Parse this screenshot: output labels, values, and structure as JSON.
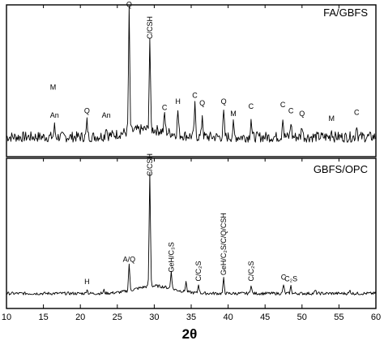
{
  "chart_data": {
    "type": "line",
    "xlabel": "2θ",
    "xlim": [
      10,
      60
    ],
    "xticks": [
      10,
      15,
      20,
      25,
      30,
      35,
      40,
      45,
      50,
      55,
      60
    ],
    "panels": [
      {
        "title": "FA/GBFS",
        "baseline": 0.13,
        "noise": 0.035,
        "humps": [
          {
            "x": 29,
            "w": 4,
            "h": 0.05
          }
        ],
        "peaks": [
          {
            "x": 16.5,
            "h": 0.07,
            "label": "An"
          },
          {
            "x": 16.3,
            "h": 0.0,
            "label": "M",
            "label_y": 0.44
          },
          {
            "x": 20.9,
            "h": 0.1,
            "label": "Q"
          },
          {
            "x": 23.5,
            "h": 0.07,
            "label": "An"
          },
          {
            "x": 26.6,
            "h": 0.8,
            "label": "Q"
          },
          {
            "x": 29.4,
            "h": 0.6,
            "label": "C/CSH",
            "vertical": true
          },
          {
            "x": 31.4,
            "h": 0.12,
            "label": "C"
          },
          {
            "x": 33.2,
            "h": 0.16,
            "label": "H"
          },
          {
            "x": 35.5,
            "h": 0.2,
            "label": "C"
          },
          {
            "x": 36.5,
            "h": 0.15,
            "label": "Q"
          },
          {
            "x": 39.4,
            "h": 0.16,
            "label": "Q"
          },
          {
            "x": 40.7,
            "h": 0.08,
            "label": "M"
          },
          {
            "x": 43.1,
            "h": 0.13,
            "label": "C"
          },
          {
            "x": 47.4,
            "h": 0.14,
            "label": "C"
          },
          {
            "x": 48.5,
            "h": 0.1,
            "label": "C"
          },
          {
            "x": 50.0,
            "h": 0.08,
            "label": "Q"
          },
          {
            "x": 54.0,
            "h": 0.05,
            "label": "M"
          },
          {
            "x": 57.4,
            "h": 0.09,
            "label": "C"
          }
        ]
      },
      {
        "title": "GBFS/OPC",
        "baseline": 0.1,
        "noise": 0.01,
        "humps": [
          {
            "x": 30,
            "w": 3.5,
            "h": 0.05
          }
        ],
        "peaks": [
          {
            "x": 20.9,
            "h": 0.03,
            "label": "H"
          },
          {
            "x": 23.2,
            "h": 0.02,
            "label": ""
          },
          {
            "x": 26.6,
            "h": 0.18,
            "label": "A/Q"
          },
          {
            "x": 29.4,
            "h": 0.76,
            "label": "C/CSH",
            "vertical": true
          },
          {
            "x": 32.3,
            "h": 0.12,
            "label": "GeH/C₃S",
            "vertical": true
          },
          {
            "x": 34.3,
            "h": 0.07,
            "label": ""
          },
          {
            "x": 36.0,
            "h": 0.06,
            "label": "C/C₂S",
            "vertical": true
          },
          {
            "x": 39.4,
            "h": 0.1,
            "label": "GeH/C₂S/C/Q/CSH",
            "vertical": true
          },
          {
            "x": 43.1,
            "h": 0.06,
            "label": "C/C₂S",
            "vertical": true
          },
          {
            "x": 47.5,
            "h": 0.06,
            "label": "C"
          },
          {
            "x": 48.5,
            "h": 0.05,
            "label": "C₂S"
          },
          {
            "x": 51.8,
            "h": 0.02,
            "label": ""
          },
          {
            "x": 56.5,
            "h": 0.02,
            "label": ""
          }
        ]
      }
    ]
  }
}
